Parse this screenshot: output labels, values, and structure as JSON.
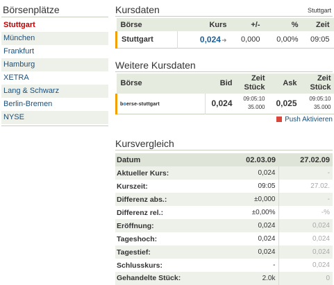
{
  "venues_panel": {
    "title": "Börsenplätze",
    "items": [
      {
        "label": "Stuttgart",
        "active": true
      },
      {
        "label": "München",
        "active": false
      },
      {
        "label": "Frankfurt",
        "active": false
      },
      {
        "label": "Hamburg",
        "active": false
      },
      {
        "label": "XETRA",
        "active": false
      },
      {
        "label": "Lang & Schwarz",
        "active": false
      },
      {
        "label": "Berlin-Bremen",
        "active": false
      },
      {
        "label": "NYSE",
        "active": false
      }
    ]
  },
  "kursdaten": {
    "title": "Kursdaten",
    "venue_label": "Stuttgart",
    "columns": [
      "Börse",
      "Kurs",
      "+/-",
      "%",
      "Zeit"
    ],
    "row": {
      "boerse": "Stuttgart",
      "kurs": "0,024",
      "change": "0,000",
      "percent": "0,00%",
      "zeit": "09:05"
    }
  },
  "weitere_kursdaten": {
    "title": "Weitere Kursdaten",
    "columns": {
      "boerse": "Börse",
      "bid": "Bid",
      "zeit_stueck_1": {
        "line1": "Zeit",
        "line2": "Stück"
      },
      "ask": "Ask",
      "zeit_stueck_2": {
        "line1": "Zeit",
        "line2": "Stück"
      }
    },
    "row": {
      "logo_prefix": "b",
      "logo_mark": "o",
      "logo_suffix": "erse-stuttgart",
      "bid": "0,024",
      "bid_time": "09:05:10",
      "bid_qty": "35.000",
      "ask": "0,025",
      "ask_time": "09:05:10",
      "ask_qty": "35.000"
    },
    "push_label": "Push Aktivieren"
  },
  "kursvergleich": {
    "title": "Kursvergleich",
    "header": {
      "label": "Datum",
      "col_a": "02.03.09",
      "col_b": "27.02.09"
    },
    "rows": [
      {
        "label": "Aktueller Kurs:",
        "a": "0,024",
        "b": "-"
      },
      {
        "label": "Kurszeit:",
        "a": "09:05",
        "b": "27.02."
      },
      {
        "label": "Differenz abs.:",
        "a": "±0,000",
        "b": "-"
      },
      {
        "label": "Differenz rel.:",
        "a": "±0,00%",
        "b": "-%"
      },
      {
        "label": "Eröffnung:",
        "a": "0,024",
        "b": "0,024"
      },
      {
        "label": "Tageshoch:",
        "a": "0,024",
        "b": "0,024"
      },
      {
        "label": "Tagestief:",
        "a": "0,024",
        "b": "0,024"
      },
      {
        "label": "Schlusskurs:",
        "a": "-",
        "b": "0,024"
      },
      {
        "label": "Gehandelte Stück:",
        "a": "2.0k",
        "b": "0"
      }
    ]
  },
  "colors": {
    "active_venue": "#c00000",
    "link": "#1a4f7a",
    "price": "#1a5f9c",
    "accent_bar": "#f0a000",
    "push_square": "#d9463b",
    "header_bg": "#e6ebe0"
  },
  "icons": {
    "trend_arrow": "arrow-right-icon",
    "push": "red-square-icon"
  }
}
